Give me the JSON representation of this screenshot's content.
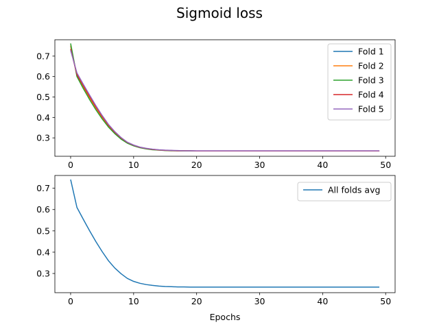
{
  "figure": {
    "suptitle": "Sigmoid loss"
  },
  "chart_data": [
    {
      "type": "line",
      "title": "",
      "xlabel": "",
      "ylabel": "",
      "xlim": [
        -2.5,
        51.5
      ],
      "ylim": [
        0.21,
        0.78
      ],
      "xticks": [
        0,
        10,
        20,
        30,
        40,
        50
      ],
      "yticks": [
        0.3,
        0.4,
        0.5,
        0.6,
        0.7
      ],
      "legend_position": "top-right",
      "grid": false,
      "series": [
        {
          "name": "Fold 1",
          "color": "#1f77b4",
          "values": [
            0.748,
            0.607,
            0.553,
            0.5,
            0.449,
            0.403,
            0.361,
            0.327,
            0.299,
            0.277,
            0.263,
            0.254,
            0.248,
            0.244,
            0.241,
            0.239,
            0.238,
            0.237,
            0.237,
            0.237,
            0.236,
            0.236,
            0.236,
            0.236,
            0.236,
            0.236,
            0.236,
            0.236,
            0.236,
            0.236,
            0.236,
            0.236,
            0.236,
            0.236,
            0.236,
            0.236,
            0.236,
            0.236,
            0.236,
            0.236,
            0.236,
            0.236,
            0.236,
            0.236,
            0.236,
            0.236,
            0.236,
            0.236,
            0.236,
            0.236
          ]
        },
        {
          "name": "Fold 2",
          "color": "#ff7f0e",
          "values": [
            0.752,
            0.605,
            0.55,
            0.497,
            0.446,
            0.4,
            0.358,
            0.325,
            0.297,
            0.276,
            0.262,
            0.253,
            0.247,
            0.243,
            0.24,
            0.239,
            0.238,
            0.237,
            0.237,
            0.236,
            0.236,
            0.236,
            0.236,
            0.236,
            0.236,
            0.236,
            0.236,
            0.236,
            0.236,
            0.236,
            0.236,
            0.236,
            0.236,
            0.236,
            0.236,
            0.236,
            0.236,
            0.236,
            0.236,
            0.236,
            0.236,
            0.236,
            0.236,
            0.236,
            0.236,
            0.236,
            0.236,
            0.236,
            0.236,
            0.236
          ]
        },
        {
          "name": "Fold 3",
          "color": "#2ca02c",
          "values": [
            0.762,
            0.6,
            0.542,
            0.488,
            0.438,
            0.393,
            0.353,
            0.321,
            0.294,
            0.274,
            0.261,
            0.252,
            0.246,
            0.242,
            0.24,
            0.238,
            0.237,
            0.237,
            0.236,
            0.236,
            0.236,
            0.236,
            0.236,
            0.236,
            0.236,
            0.236,
            0.236,
            0.236,
            0.236,
            0.236,
            0.236,
            0.236,
            0.236,
            0.236,
            0.236,
            0.236,
            0.236,
            0.236,
            0.236,
            0.236,
            0.236,
            0.236,
            0.236,
            0.236,
            0.236,
            0.236,
            0.236,
            0.236,
            0.236,
            0.236
          ]
        },
        {
          "name": "Fold 4",
          "color": "#d62728",
          "values": [
            0.735,
            0.61,
            0.556,
            0.503,
            0.452,
            0.405,
            0.362,
            0.328,
            0.3,
            0.278,
            0.264,
            0.254,
            0.248,
            0.244,
            0.241,
            0.239,
            0.238,
            0.237,
            0.237,
            0.237,
            0.236,
            0.236,
            0.236,
            0.236,
            0.236,
            0.236,
            0.236,
            0.236,
            0.236,
            0.236,
            0.236,
            0.236,
            0.236,
            0.236,
            0.236,
            0.236,
            0.236,
            0.236,
            0.236,
            0.236,
            0.236,
            0.236,
            0.236,
            0.236,
            0.236,
            0.236,
            0.236,
            0.236,
            0.236,
            0.236
          ]
        },
        {
          "name": "Fold 5",
          "color": "#9467bd",
          "values": [
            0.728,
            0.618,
            0.563,
            0.51,
            0.458,
            0.41,
            0.366,
            0.331,
            0.302,
            0.279,
            0.265,
            0.255,
            0.249,
            0.245,
            0.242,
            0.24,
            0.239,
            0.238,
            0.237,
            0.237,
            0.237,
            0.237,
            0.237,
            0.237,
            0.237,
            0.237,
            0.237,
            0.237,
            0.237,
            0.237,
            0.237,
            0.237,
            0.237,
            0.237,
            0.237,
            0.237,
            0.237,
            0.237,
            0.237,
            0.237,
            0.237,
            0.237,
            0.237,
            0.237,
            0.237,
            0.237,
            0.237,
            0.237,
            0.237,
            0.237
          ]
        }
      ]
    },
    {
      "type": "line",
      "title": "",
      "xlabel": "Epochs",
      "ylabel": "",
      "xlim": [
        -2.5,
        51.5
      ],
      "ylim": [
        0.21,
        0.76
      ],
      "xticks": [
        0,
        10,
        20,
        30,
        40,
        50
      ],
      "yticks": [
        0.3,
        0.4,
        0.5,
        0.6,
        0.7
      ],
      "legend_position": "top-right",
      "grid": false,
      "series": [
        {
          "name": "All folds avg",
          "color": "#1f77b4",
          "values": [
            0.741,
            0.61,
            0.555,
            0.501,
            0.45,
            0.403,
            0.36,
            0.326,
            0.299,
            0.277,
            0.263,
            0.254,
            0.248,
            0.244,
            0.241,
            0.239,
            0.238,
            0.237,
            0.237,
            0.236,
            0.236,
            0.236,
            0.236,
            0.236,
            0.236,
            0.236,
            0.236,
            0.236,
            0.236,
            0.236,
            0.236,
            0.236,
            0.236,
            0.236,
            0.236,
            0.236,
            0.236,
            0.236,
            0.236,
            0.236,
            0.236,
            0.236,
            0.236,
            0.236,
            0.236,
            0.236,
            0.236,
            0.236,
            0.236,
            0.236
          ]
        }
      ]
    }
  ]
}
